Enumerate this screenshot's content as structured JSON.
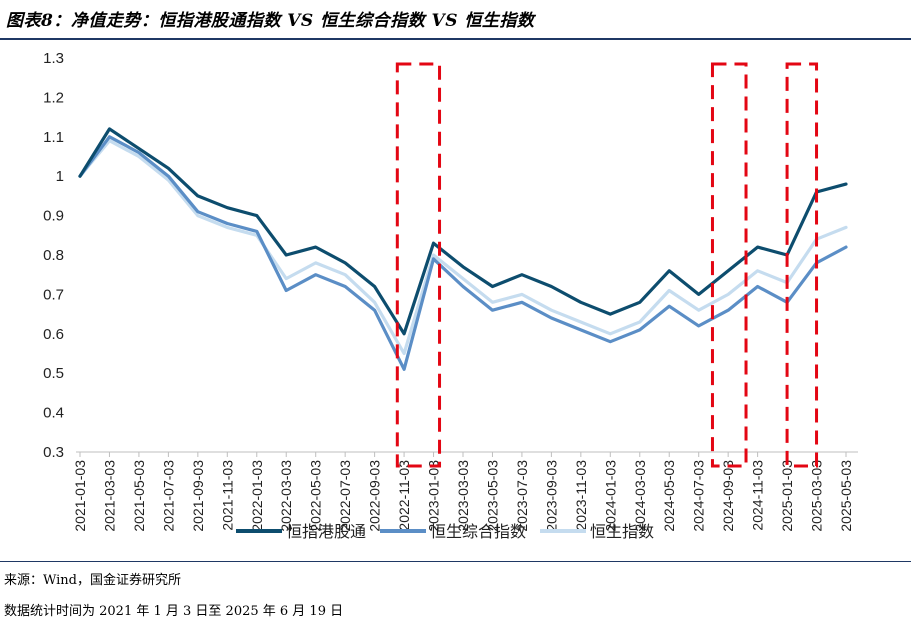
{
  "header": {
    "title": "图表8：净值走势：恒指港股通指数 VS 恒生综合指数  VS  恒生指数"
  },
  "footer": {
    "source": "来源：Wind，国金证券研究所",
    "note": "数据统计时间为 2021 年 1 月 3 日至 2025 年 6 月 19 日"
  },
  "colors": {
    "hsci_hkc": "#0d4d6e",
    "hsci": "#5b8ec6",
    "hsi": "#c5dcef",
    "highlight": "#e30613",
    "axis": "#bfbfbf"
  },
  "chart_data": {
    "type": "line",
    "ylim": [
      0.3,
      1.3
    ],
    "yticks": [
      "0.3",
      "0.4",
      "0.5",
      "0.6",
      "0.7",
      "0.8",
      "0.9",
      "1",
      "1.1",
      "1.2",
      "1.3"
    ],
    "x": [
      "2021-01-03",
      "2021-03-03",
      "2021-05-03",
      "2021-07-03",
      "2021-09-03",
      "2021-11-03",
      "2022-01-03",
      "2022-03-03",
      "2022-05-03",
      "2022-07-03",
      "2022-09-03",
      "2022-11-03",
      "2023-01-03",
      "2023-03-03",
      "2023-05-03",
      "2023-07-03",
      "2023-09-03",
      "2023-11-03",
      "2024-01-03",
      "2024-03-03",
      "2024-05-03",
      "2024-07-03",
      "2024-09-03",
      "2024-11-03",
      "2025-01-03",
      "2025-03-03",
      "2025-05-03"
    ],
    "series": [
      {
        "name": "恒指港股通",
        "values": [
          1.0,
          1.12,
          1.07,
          1.02,
          0.95,
          0.92,
          0.9,
          0.8,
          0.82,
          0.78,
          0.72,
          0.6,
          0.83,
          0.77,
          0.72,
          0.75,
          0.72,
          0.68,
          0.65,
          0.68,
          0.76,
          0.7,
          0.76,
          0.82,
          0.8,
          0.96,
          0.98
        ]
      },
      {
        "name": "恒生综合指数",
        "values": [
          1.0,
          1.1,
          1.06,
          1.0,
          0.91,
          0.88,
          0.86,
          0.71,
          0.75,
          0.72,
          0.66,
          0.51,
          0.79,
          0.72,
          0.66,
          0.68,
          0.64,
          0.61,
          0.58,
          0.61,
          0.67,
          0.62,
          0.66,
          0.72,
          0.68,
          0.78,
          0.82
        ]
      },
      {
        "name": "恒生指数",
        "values": [
          1.0,
          1.09,
          1.05,
          0.99,
          0.9,
          0.87,
          0.85,
          0.74,
          0.78,
          0.75,
          0.68,
          0.55,
          0.8,
          0.74,
          0.68,
          0.7,
          0.66,
          0.63,
          0.6,
          0.63,
          0.71,
          0.66,
          0.7,
          0.76,
          0.73,
          0.84,
          0.87
        ]
      }
    ],
    "highlights": [
      {
        "from": "2022-10-20",
        "to": "2023-01-15"
      },
      {
        "from": "2024-08-01",
        "to": "2024-10-10"
      },
      {
        "from": "2025-01-03",
        "to": "2025-03-03"
      }
    ],
    "legend_position": "bottom"
  }
}
